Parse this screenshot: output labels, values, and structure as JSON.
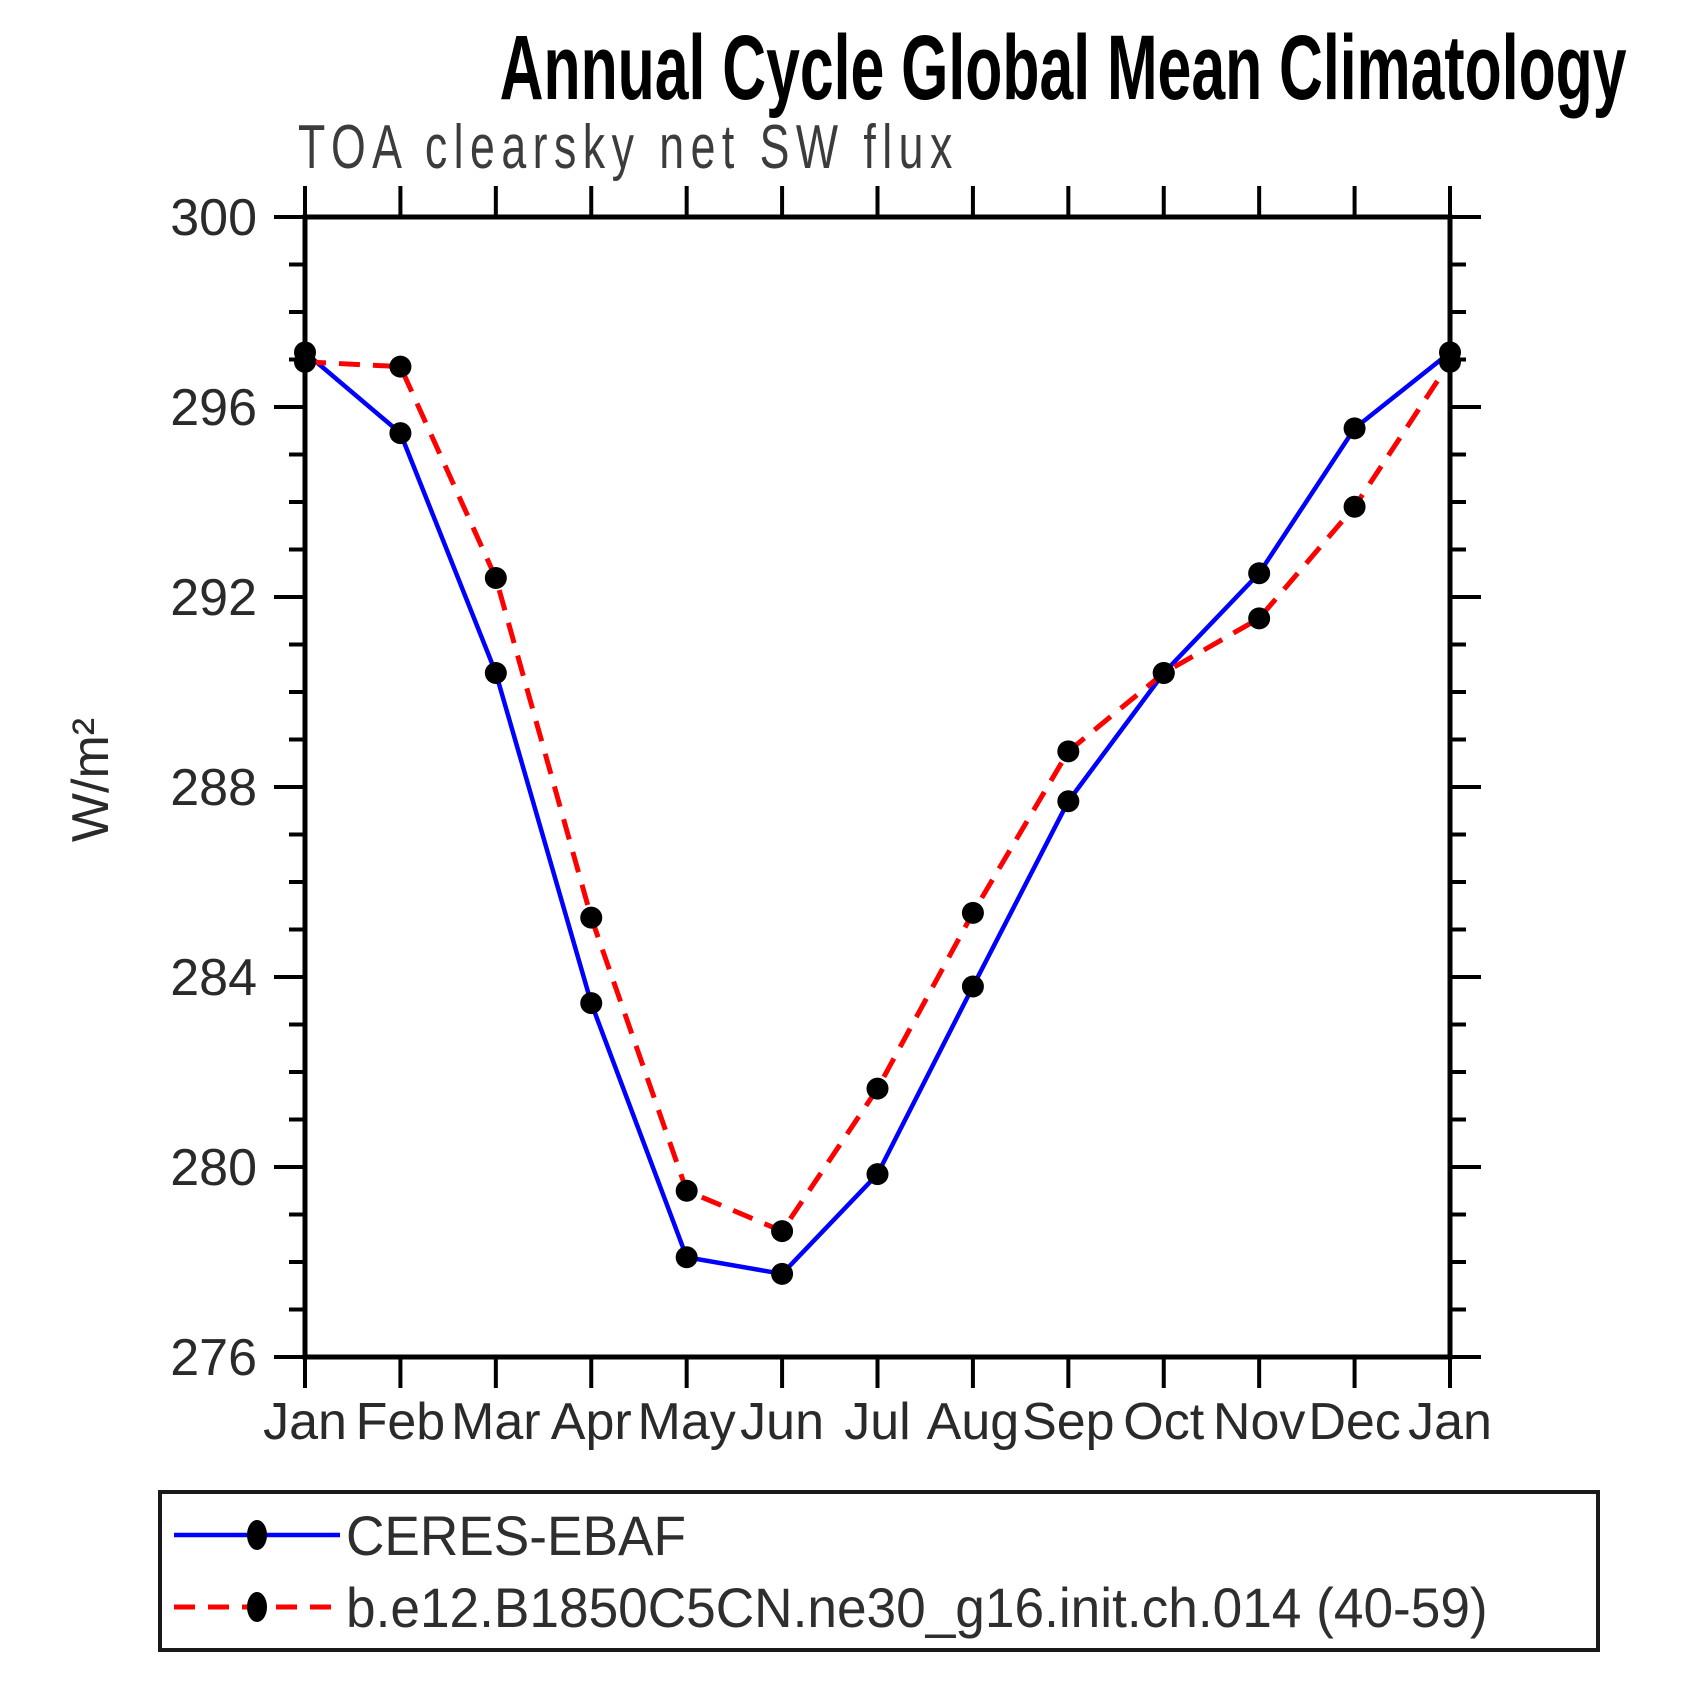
{
  "page": {
    "background": "#ffffff"
  },
  "chart_data": {
    "type": "line",
    "title": "Annual Cycle Global Mean Climatology",
    "subtitle": "TOA clearsky net SW flux",
    "ylabel": "W/m²",
    "xlabel": "",
    "categories": [
      "Jan",
      "Feb",
      "Mar",
      "Apr",
      "May",
      "Jun",
      "Jul",
      "Aug",
      "Sep",
      "Oct",
      "Nov",
      "Dec",
      "Jan"
    ],
    "ylim": [
      276,
      300
    ],
    "ytick_major_step": 4,
    "ytick_minor_step": 1,
    "ytick_major_labels": [
      "276",
      "280",
      "284",
      "288",
      "292",
      "296",
      "300"
    ],
    "grid": false,
    "legend_position": "bottom",
    "marker": {
      "shape": "filled-circle",
      "color": "#000000"
    },
    "series": [
      {
        "name": "CERES-EBAF",
        "color": "#0000ff",
        "line_style": "solid",
        "values": [
          297.15,
          295.45,
          290.4,
          283.45,
          278.1,
          277.75,
          279.85,
          283.8,
          287.7,
          290.4,
          292.5,
          295.55,
          297.15
        ]
      },
      {
        "name": "b.e12.B1850C5CN.ne30_g16.init.ch.014 (40-59)",
        "color": "#ff0000",
        "line_style": "dashed",
        "values": [
          296.95,
          296.85,
          292.4,
          285.25,
          279.5,
          278.65,
          281.65,
          285.35,
          288.75,
          290.4,
          291.55,
          293.9,
          296.95
        ]
      }
    ]
  }
}
